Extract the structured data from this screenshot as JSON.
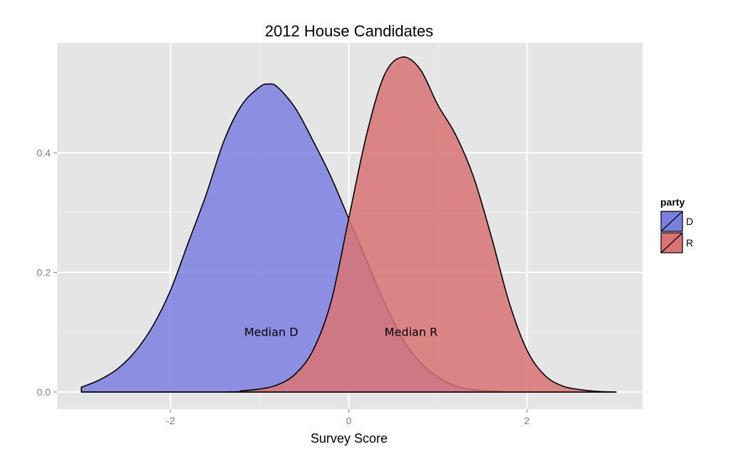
{
  "chart_data": {
    "type": "area",
    "title": "2012 House Candidates",
    "xlabel": "Survey Score",
    "ylabel": "",
    "xlim": [
      -3.0,
      3.0
    ],
    "ylim": [
      0.0,
      0.56
    ],
    "x_ticks": [
      -2,
      0,
      2
    ],
    "y_ticks": [
      0.0,
      0.2,
      0.4
    ],
    "x_tick_labels": [
      "-2",
      "0",
      "2"
    ],
    "y_tick_labels": [
      "0.0",
      "0.2",
      "0.4"
    ],
    "grid": true,
    "legend": {
      "title": "party",
      "placement": "right",
      "entries": [
        {
          "label": "D",
          "color": "#7b7fe0"
        },
        {
          "label": "R",
          "color": "#d97374"
        }
      ]
    },
    "annotations": [
      {
        "text": "Median D",
        "x": -0.87,
        "y": 0.1
      },
      {
        "text": "Median R",
        "x": 0.7,
        "y": 0.1
      }
    ],
    "series": [
      {
        "name": "D",
        "color": "#7b7fe0",
        "opacity": 0.85,
        "x": [
          -3.0,
          -2.8,
          -2.6,
          -2.4,
          -2.2,
          -2.0,
          -1.8,
          -1.6,
          -1.4,
          -1.2,
          -1.0,
          -0.9,
          -0.8,
          -0.6,
          -0.4,
          -0.2,
          0.0,
          0.2,
          0.4,
          0.6,
          0.8,
          1.0,
          1.2,
          1.4,
          1.6,
          1.8,
          2.0,
          2.2,
          2.4,
          2.6,
          3.0
        ],
        "y": [
          0.008,
          0.02,
          0.038,
          0.067,
          0.11,
          0.17,
          0.25,
          0.33,
          0.42,
          0.48,
          0.51,
          0.515,
          0.51,
          0.475,
          0.42,
          0.36,
          0.29,
          0.22,
          0.15,
          0.09,
          0.05,
          0.025,
          0.01,
          0.004,
          0.002,
          0.0,
          0.0,
          0.0,
          0.0,
          0.0,
          0.0
        ]
      },
      {
        "name": "R",
        "color": "#d97374",
        "opacity": 0.85,
        "x": [
          -3.0,
          -1.4,
          -1.2,
          -1.0,
          -0.8,
          -0.6,
          -0.4,
          -0.2,
          0.0,
          0.2,
          0.4,
          0.6,
          0.8,
          1.0,
          1.2,
          1.4,
          1.6,
          1.8,
          2.0,
          2.2,
          2.4,
          2.6,
          2.8,
          3.0
        ],
        "y": [
          0.0,
          0.0,
          0.002,
          0.005,
          0.012,
          0.03,
          0.07,
          0.15,
          0.29,
          0.43,
          0.53,
          0.56,
          0.54,
          0.48,
          0.43,
          0.36,
          0.26,
          0.15,
          0.07,
          0.028,
          0.01,
          0.004,
          0.001,
          0.0
        ]
      }
    ]
  }
}
